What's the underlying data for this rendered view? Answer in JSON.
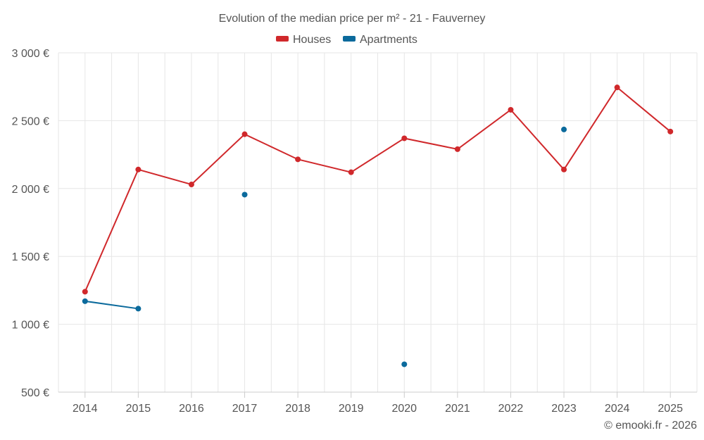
{
  "chart_data": {
    "type": "line",
    "title": "Evolution of the median price per m² - 21 - Fauverney",
    "categories": [
      "2014",
      "2015",
      "2016",
      "2017",
      "2018",
      "2019",
      "2020",
      "2021",
      "2022",
      "2023",
      "2024",
      "2025"
    ],
    "y_ticks": [
      "500 €",
      "1 000 €",
      "1 500 €",
      "2 000 €",
      "2 500 €",
      "3 000 €"
    ],
    "y_tick_values": [
      500,
      1000,
      1500,
      2000,
      2500,
      3000
    ],
    "ylim": [
      500,
      3000
    ],
    "xlabel": "",
    "ylabel": "",
    "legend_position": "top-center",
    "grid": true,
    "series": [
      {
        "name": "Houses",
        "color": "#d0282b",
        "values": [
          1240,
          2140,
          2030,
          2400,
          2215,
          2120,
          2370,
          2290,
          2580,
          2140,
          2745,
          2420
        ]
      },
      {
        "name": "Apartments",
        "color": "#0b6a9c",
        "values": [
          1170,
          1115,
          null,
          1955,
          null,
          null,
          705,
          null,
          null,
          2435,
          null,
          null
        ]
      }
    ],
    "credit": "© emooki.fr - 2026"
  }
}
